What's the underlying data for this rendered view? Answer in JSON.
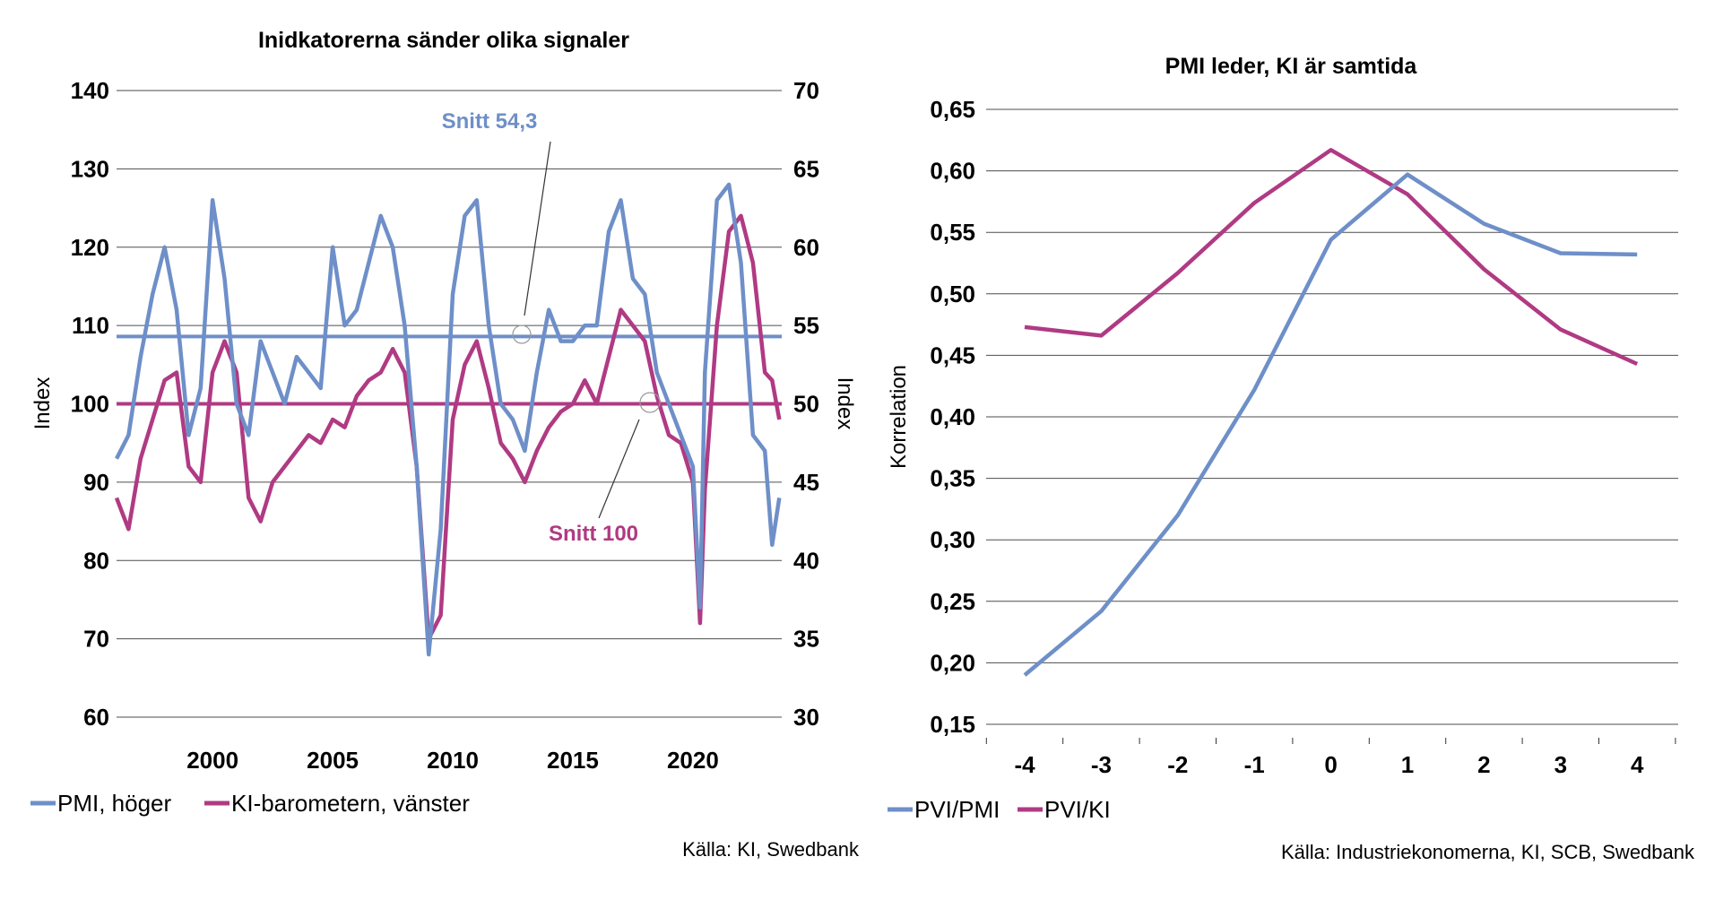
{
  "colors": {
    "blue": "#6E8FC8",
    "magenta": "#B03A83",
    "grid": "#4d4d4d"
  },
  "chart_data": [
    {
      "type": "line",
      "title": "Inidkatorerna sänder olika signaler",
      "ylabel_left": "Index",
      "ylabel_right": "Index",
      "ylim_left": [
        60,
        140
      ],
      "ylim_right": [
        30,
        70
      ],
      "xlim": [
        1996.0,
        2023.7
      ],
      "yticks_left": [
        "60",
        "70",
        "80",
        "90",
        "100",
        "110",
        "120",
        "130",
        "140"
      ],
      "yticks_right": [
        "30",
        "35",
        "40",
        "45",
        "50",
        "55",
        "60",
        "65",
        "70"
      ],
      "xticks": [
        "2000",
        "2005",
        "2010",
        "2015",
        "2020"
      ],
      "grid": true,
      "legend_position": "bottom",
      "series": [
        {
          "name": "PMI, höger",
          "axis": "right",
          "color": "#6E8FC8",
          "x": [
            1996.0,
            1996.5,
            1997.0,
            1997.5,
            1998.0,
            1998.5,
            1999.0,
            1999.5,
            2000.0,
            2000.5,
            2001.0,
            2001.5,
            2002.0,
            2002.5,
            2003.0,
            2003.5,
            2004.0,
            2004.5,
            2005.0,
            2005.5,
            2006.0,
            2006.5,
            2007.0,
            2007.5,
            2008.0,
            2008.5,
            2009.0,
            2009.5,
            2010.0,
            2010.5,
            2011.0,
            2011.5,
            2012.0,
            2012.5,
            2013.0,
            2013.5,
            2014.0,
            2014.5,
            2015.0,
            2015.5,
            2016.0,
            2016.5,
            2017.0,
            2017.5,
            2018.0,
            2018.5,
            2019.0,
            2019.5,
            2020.0,
            2020.3,
            2020.5,
            2021.0,
            2021.5,
            2022.0,
            2022.5,
            2023.0,
            2023.3,
            2023.6
          ],
          "values": [
            46.5,
            48,
            53,
            57,
            60,
            56,
            48,
            51,
            63,
            58,
            50,
            48,
            54,
            52,
            50,
            53,
            52,
            51,
            60,
            55,
            56,
            59,
            62,
            60,
            55,
            46,
            34,
            42,
            57,
            62,
            63,
            55,
            50,
            49,
            47,
            52,
            56,
            54,
            54,
            55,
            55,
            61,
            63,
            58,
            57,
            52,
            50,
            48,
            46,
            37,
            52,
            63,
            64,
            59,
            48,
            47,
            41,
            44
          ]
        },
        {
          "name": "KI-barometern, vänster",
          "axis": "left",
          "color": "#B03A83",
          "x": [
            1996.0,
            1996.5,
            1997.0,
            1997.5,
            1998.0,
            1998.5,
            1999.0,
            1999.5,
            2000.0,
            2000.5,
            2001.0,
            2001.5,
            2002.0,
            2002.5,
            2003.0,
            2003.5,
            2004.0,
            2004.5,
            2005.0,
            2005.5,
            2006.0,
            2006.5,
            2007.0,
            2007.5,
            2008.0,
            2008.5,
            2009.0,
            2009.5,
            2010.0,
            2010.5,
            2011.0,
            2011.5,
            2012.0,
            2012.5,
            2013.0,
            2013.5,
            2014.0,
            2014.5,
            2015.0,
            2015.5,
            2016.0,
            2016.5,
            2017.0,
            2017.5,
            2018.0,
            2018.5,
            2019.0,
            2019.5,
            2020.0,
            2020.3,
            2020.5,
            2021.0,
            2021.5,
            2022.0,
            2022.5,
            2023.0,
            2023.3,
            2023.6
          ],
          "values": [
            88,
            84,
            93,
            98,
            103,
            104,
            92,
            90,
            104,
            108,
            104,
            88,
            85,
            90,
            92,
            94,
            96,
            95,
            98,
            97,
            101,
            103,
            104,
            107,
            104,
            92,
            70,
            73,
            98,
            105,
            108,
            102,
            95,
            93,
            90,
            94,
            97,
            99,
            100,
            103,
            100,
            106,
            112,
            110,
            108,
            101,
            96,
            95,
            90,
            72,
            89,
            110,
            122,
            124,
            118,
            104,
            103,
            98
          ]
        },
        {
          "name": "Snitt 54,3",
          "axis": "right",
          "color": "#6E8FC8",
          "x": [
            1996.0,
            2023.7
          ],
          "values": [
            54.3,
            54.3
          ]
        },
        {
          "name": "Snitt 100",
          "axis": "left",
          "color": "#B03A83",
          "x": [
            1996.0,
            2023.7
          ],
          "values": [
            100,
            100
          ]
        }
      ],
      "annotations": [
        "Snitt 54,3",
        "Snitt 100"
      ],
      "legend": [
        "PMI, höger",
        "KI-barometern, vänster"
      ],
      "source": "Källa: KI, Swedbank"
    },
    {
      "type": "line",
      "title": "PMI leder, KI är samtida",
      "ylabel": "Korrelation",
      "ylim": [
        0.15,
        0.65
      ],
      "yticks": [
        "0,15",
        "0,20",
        "0,25",
        "0,30",
        "0,35",
        "0,40",
        "0,45",
        "0,50",
        "0,55",
        "0,60",
        "0,65"
      ],
      "categories": [
        "-4",
        "-3",
        "-2",
        "-1",
        "0",
        "1",
        "2",
        "3",
        "4"
      ],
      "grid": true,
      "legend_position": "bottom",
      "series": [
        {
          "name": "PVI/PMI",
          "color": "#6E8FC8",
          "values": [
            0.19,
            0.242,
            0.32,
            0.422,
            0.544,
            0.597,
            0.557,
            0.533,
            0.532
          ]
        },
        {
          "name": "PVI/KI",
          "color": "#B03A83",
          "values": [
            0.473,
            0.466,
            0.517,
            0.574,
            0.617,
            0.581,
            0.52,
            0.471,
            0.443
          ]
        }
      ],
      "legend": [
        "PVI/PMI",
        "PVI/KI"
      ],
      "source": "Källa: Industriekonomerna, KI, SCB, Swedbank"
    }
  ]
}
